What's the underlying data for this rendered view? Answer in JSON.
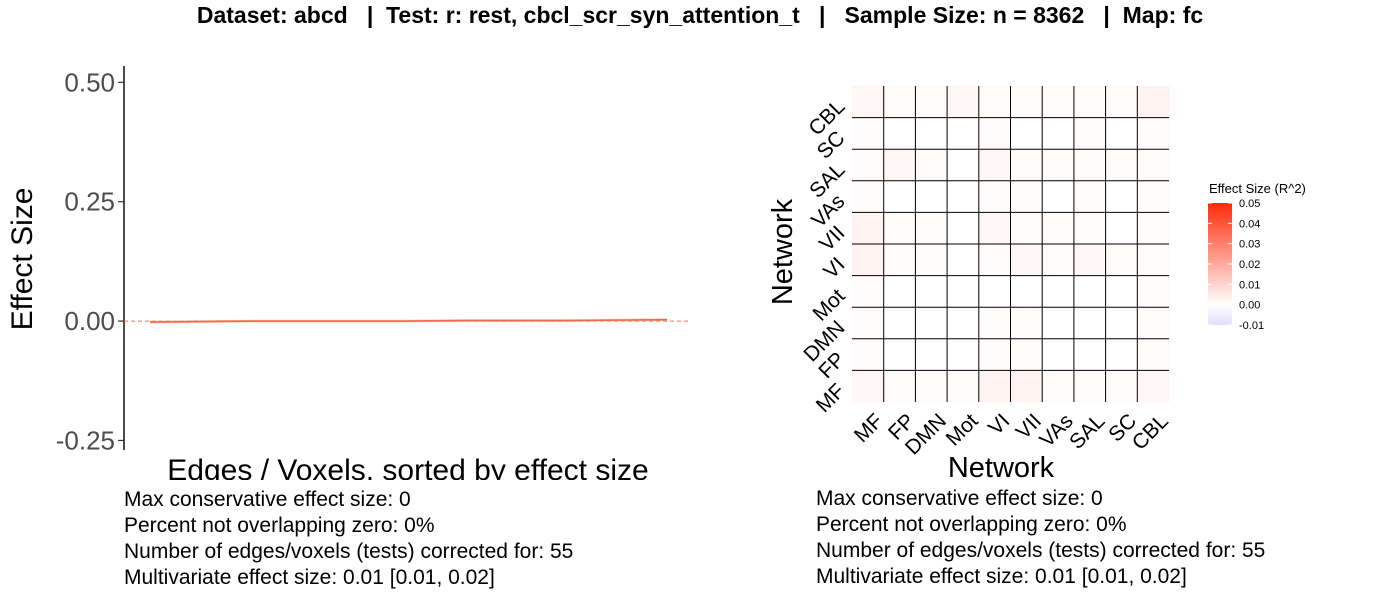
{
  "title": "Dataset: abcd   |  Test: r: rest, cbcl_scr_syn_attention_t   |   Sample Size: n = 8362   |  Map: fc",
  "chart_data": [
    {
      "type": "line",
      "ylabel": "Effect Size",
      "xlabel": "Edges / Voxels, sorted by effect size",
      "ylim": [
        -0.27,
        0.53
      ],
      "yticks": [
        0.5,
        0.25,
        0.0,
        -0.25
      ],
      "ytick_labels": [
        "0.50",
        "0.25",
        "0.00",
        "-0.25"
      ],
      "n_points": 55,
      "series": [
        {
          "values": [
            -0.002,
            -0.001,
            0.0,
            0.0,
            0.0,
            0.0,
            0.001,
            0.001,
            0.001,
            0.002,
            0.003
          ]
        }
      ],
      "colors": {
        "ci_band": "#f4a582",
        "line": "#ef6b50",
        "zero_line": "#e8735a"
      }
    },
    {
      "type": "heatmap",
      "xlabel": "Network",
      "ylabel": "Network",
      "networks": [
        "MF",
        "FP",
        "DMN",
        "Mot",
        "VI",
        "VII",
        "VAs",
        "SAL",
        "SC",
        "CBL"
      ],
      "values": [
        [
          0.002,
          0.001,
          0.001,
          0.001,
          0.003,
          0.003,
          0.001,
          0.001,
          0.001,
          0.002
        ],
        [
          0.001,
          0.0,
          0.0,
          0.0,
          0.001,
          0.001,
          0.0,
          0.0,
          0.0,
          0.001
        ],
        [
          0.001,
          0.0,
          0.0,
          0.0,
          0.001,
          0.001,
          0.0,
          0.0,
          0.0,
          0.001
        ],
        [
          0.001,
          0.0,
          0.0,
          0.0,
          0.0,
          0.0,
          0.0,
          0.0,
          0.0,
          0.001
        ],
        [
          0.003,
          0.001,
          0.001,
          0.0,
          0.001,
          0.002,
          0.001,
          0.002,
          0.001,
          0.001
        ],
        [
          0.003,
          0.001,
          0.001,
          0.0,
          0.002,
          0.001,
          0.001,
          0.001,
          0.0,
          0.001
        ],
        [
          0.001,
          0.0,
          0.0,
          0.0,
          0.001,
          0.001,
          0.0,
          0.001,
          0.0,
          0.001
        ],
        [
          0.001,
          0.002,
          0.001,
          0.0,
          0.002,
          0.001,
          0.001,
          0.001,
          0.001,
          0.001
        ],
        [
          0.001,
          0.0,
          0.0,
          0.0,
          0.001,
          0.0,
          0.0,
          0.001,
          0.0,
          0.001
        ],
        [
          0.002,
          0.001,
          0.001,
          0.002,
          0.001,
          0.001,
          0.001,
          0.001,
          0.001,
          0.003
        ]
      ],
      "legend": {
        "title": "Effect Size (R^2)",
        "ticks": [
          "0.05",
          "0.04",
          "0.03",
          "0.02",
          "0.01",
          "0.00",
          "-0.01"
        ],
        "range": [
          -0.01,
          0.05
        ],
        "low_color": "#e3dcff",
        "mid_color": "#ffffff",
        "high_color": "#ff2a0a",
        "placement": "right"
      }
    }
  ],
  "stats_left": [
    "Max conservative effect size: 0",
    "Percent not overlapping zero: 0%",
    "Number of edges/voxels (tests) corrected for: 55",
    "Multivariate effect size: 0.01 [0.01, 0.02]"
  ],
  "stats_right": [
    "Max conservative effect size: 0",
    "Percent not overlapping zero: 0%",
    "Number of edges/voxels (tests) corrected for: 55",
    "Multivariate effect size: 0.01 [0.01, 0.02]"
  ]
}
